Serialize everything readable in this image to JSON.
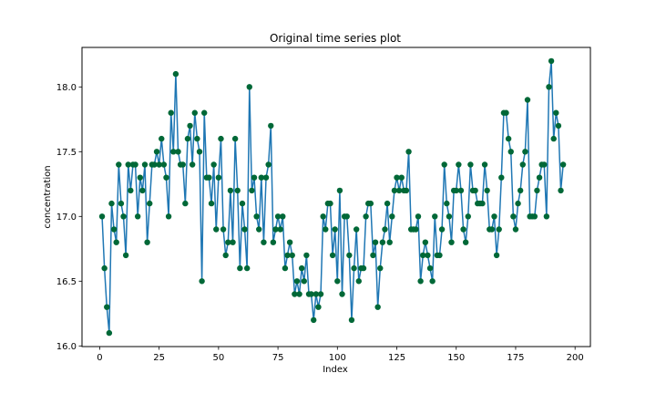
{
  "chart_data": {
    "type": "line",
    "title": "Original time series plot",
    "xlabel": "Index",
    "ylabel": "concentration",
    "xlim": [
      -7.45,
      206.45
    ],
    "ylim": [
      15.995,
      18.305
    ],
    "xticks": [
      0,
      25,
      50,
      75,
      100,
      125,
      150,
      175,
      200
    ],
    "yticks": [
      16.0,
      16.5,
      17.0,
      17.5,
      18.0
    ],
    "ytick_labels": [
      "16.0",
      "16.5",
      "17.0",
      "17.5",
      "18.0"
    ],
    "grid": false,
    "line_color": "#1f77b4",
    "marker_color": "#006837",
    "series": [
      {
        "x_start": 1,
        "values": [
          17.0,
          16.6,
          16.3,
          16.1,
          17.1,
          16.9,
          16.8,
          17.4,
          17.1,
          17.0,
          16.7,
          17.4,
          17.2,
          17.4,
          17.4,
          17.0,
          17.3,
          17.2,
          17.4,
          16.8,
          17.1,
          17.4,
          17.4,
          17.5,
          17.4,
          17.6,
          17.4,
          17.3,
          17.0,
          17.8,
          17.5,
          18.1,
          17.5,
          17.4,
          17.4,
          17.1,
          17.6,
          17.7,
          17.4,
          17.8,
          17.6,
          17.5,
          16.5,
          17.8,
          17.3,
          17.3,
          17.1,
          17.4,
          16.9,
          17.3,
          17.6,
          16.9,
          16.7,
          16.8,
          17.2,
          16.8,
          17.6,
          17.2,
          16.6,
          17.1,
          16.9,
          16.6,
          18.0,
          17.2,
          17.3,
          17.0,
          16.9,
          17.3,
          16.8,
          17.3,
          17.4,
          17.7,
          16.8,
          16.9,
          17.0,
          16.9,
          17.0,
          16.6,
          16.7,
          16.8,
          16.7,
          16.4,
          16.5,
          16.4,
          16.6,
          16.5,
          16.7,
          16.4,
          16.4,
          16.2,
          16.4,
          16.3,
          16.4,
          17.0,
          16.9,
          17.1,
          17.1,
          16.7,
          16.9,
          16.5,
          17.2,
          16.4,
          17.0,
          17.0,
          16.7,
          16.2,
          16.6,
          16.9,
          16.5,
          16.6,
          16.6,
          17.0,
          17.1,
          17.1,
          16.7,
          16.8,
          16.3,
          16.6,
          16.8,
          16.9,
          17.1,
          16.8,
          17.0,
          17.2,
          17.3,
          17.2,
          17.3,
          17.2,
          17.2,
          17.5,
          16.9,
          16.9,
          16.9,
          17.0,
          16.5,
          16.7,
          16.8,
          16.7,
          16.6,
          16.5,
          17.0,
          16.7,
          16.7,
          16.9,
          17.4,
          17.1,
          17.0,
          16.8,
          17.2,
          17.2,
          17.4,
          17.2,
          16.9,
          16.8,
          17.0,
          17.4,
          17.2,
          17.2,
          17.1,
          17.1,
          17.1,
          17.4,
          17.2,
          16.9,
          16.9,
          17.0,
          16.7,
          16.9,
          17.3,
          17.8,
          17.8,
          17.6,
          17.5,
          17.0,
          16.9,
          17.1,
          17.2,
          17.4,
          17.5,
          17.9,
          17.0,
          17.0,
          17.0,
          17.2,
          17.3,
          17.4,
          17.4,
          17.0,
          18.0,
          18.2,
          17.6,
          17.8,
          17.7,
          17.2,
          17.4
        ]
      }
    ]
  }
}
